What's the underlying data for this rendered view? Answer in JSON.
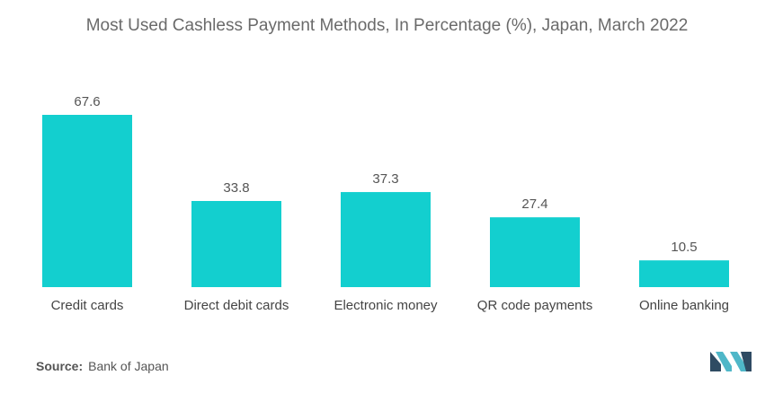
{
  "colors": {
    "bar": "#13CFCF",
    "text": "#555555",
    "logo_dark": "#2F4B63",
    "logo_light": "#4FB7C8"
  },
  "chart_data": {
    "type": "bar",
    "title": "Most Used Cashless Payment Methods, In Percentage (%), Japan, March 2022",
    "categories": [
      "Credit cards",
      "Direct debit cards",
      "Electronic money",
      "QR code payments",
      "Online banking"
    ],
    "values": [
      67.6,
      33.8,
      37.3,
      27.4,
      10.5
    ],
    "value_labels": [
      "67.6",
      "33.8",
      "37.3",
      "27.4",
      "10.5"
    ],
    "xlabel": "",
    "ylabel": "",
    "ylim": [
      0,
      67.6
    ],
    "grid": false,
    "legend": "none"
  },
  "source": {
    "label": "Source:",
    "text": "Bank of Japan"
  },
  "logo": {
    "icon": "mordor-intelligence-logo-icon"
  }
}
